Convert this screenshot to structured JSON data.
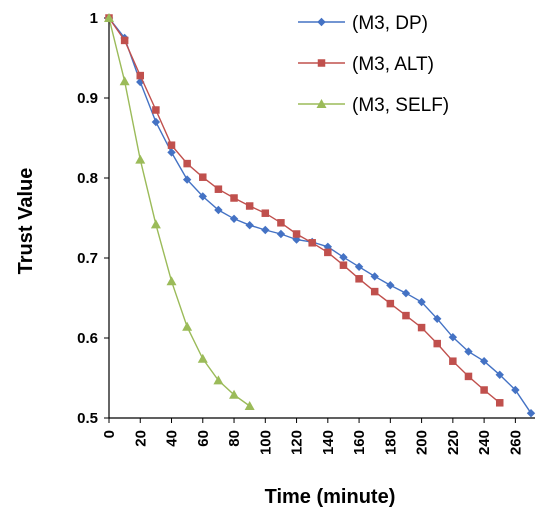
{
  "chart_data": {
    "type": "line",
    "title": "",
    "xlabel": "Time (minute)",
    "ylabel": "Trust Value",
    "xlim": [
      0,
      270
    ],
    "ylim": [
      0.5,
      1.0
    ],
    "x_ticks": [
      "0",
      "20",
      "40",
      "60",
      "80",
      "100",
      "120",
      "140",
      "160",
      "180",
      "200",
      "220",
      "240",
      "260"
    ],
    "y_ticks": [
      "0.5",
      "0.6",
      "0.7",
      "0.8",
      "0.9",
      "1"
    ],
    "grid": false,
    "legend_position": "top-right",
    "series": [
      {
        "name": "(M3, DP)",
        "color": "#4472C4",
        "marker": "diamond",
        "x": [
          0,
          10,
          20,
          30,
          40,
          50,
          60,
          70,
          80,
          90,
          100,
          110,
          120,
          130,
          140,
          150,
          160,
          170,
          180,
          190,
          200,
          210,
          220,
          230,
          240,
          250,
          260,
          270
        ],
        "y": [
          1.0,
          0.975,
          0.92,
          0.87,
          0.832,
          0.798,
          0.777,
          0.76,
          0.749,
          0.741,
          0.735,
          0.73,
          0.723,
          0.72,
          0.714,
          0.701,
          0.689,
          0.677,
          0.666,
          0.656,
          0.645,
          0.624,
          0.601,
          0.583,
          0.571,
          0.554,
          0.535,
          0.506
        ]
      },
      {
        "name": "(M3, ALT)",
        "color": "#C0504D",
        "marker": "square",
        "x": [
          0,
          10,
          20,
          30,
          40,
          50,
          60,
          70,
          80,
          90,
          100,
          110,
          120,
          130,
          140,
          150,
          160,
          170,
          180,
          190,
          200,
          210,
          220,
          230,
          240,
          250
        ],
        "y": [
          1.0,
          0.972,
          0.928,
          0.885,
          0.841,
          0.818,
          0.801,
          0.786,
          0.775,
          0.765,
          0.756,
          0.744,
          0.73,
          0.719,
          0.707,
          0.691,
          0.674,
          0.658,
          0.643,
          0.628,
          0.613,
          0.593,
          0.571,
          0.552,
          0.535,
          0.519
        ]
      },
      {
        "name": "(M3, SELF)",
        "color": "#9BBB59",
        "marker": "triangle",
        "x": [
          0,
          10,
          20,
          30,
          40,
          50,
          60,
          70,
          80,
          90
        ],
        "y": [
          1.0,
          0.921,
          0.823,
          0.742,
          0.671,
          0.614,
          0.574,
          0.547,
          0.529,
          0.515
        ]
      }
    ]
  }
}
